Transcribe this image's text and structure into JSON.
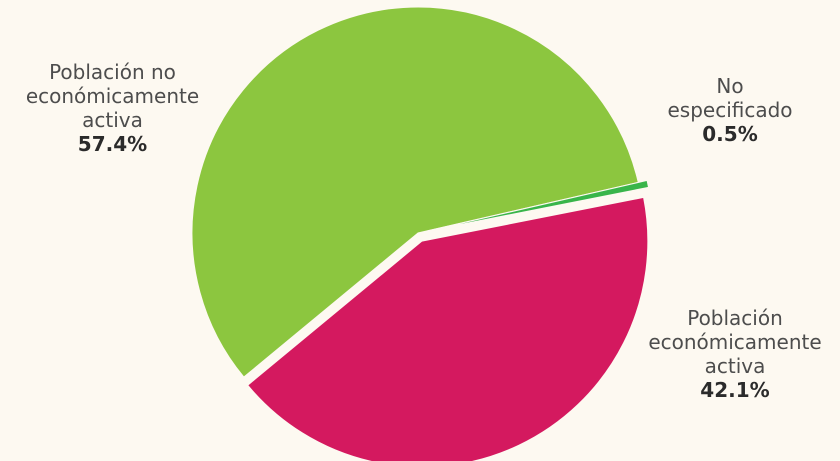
{
  "chart_data": {
    "type": "pie",
    "title": "",
    "colors": {
      "background": "#fdf9f1",
      "inactive": "#8cc63f",
      "unspecified": "#39b54a",
      "active": "#d4195f"
    },
    "slices": [
      {
        "key": "inactive",
        "label_lines": [
          "Población no",
          "económicamente",
          "activa"
        ],
        "value": 57.4,
        "value_label": "57.4%",
        "color": "#8cc63f",
        "exploded": false
      },
      {
        "key": "unspecified",
        "label_lines": [
          "No",
          "especificado"
        ],
        "value": 0.5,
        "value_label": "0.5%",
        "color": "#39b54a",
        "exploded": true
      },
      {
        "key": "active",
        "label_lines": [
          "Población",
          "económicamente",
          "activa"
        ],
        "value": 42.1,
        "value_label": "42.1%",
        "color": "#d4195f",
        "exploded": true
      }
    ]
  }
}
